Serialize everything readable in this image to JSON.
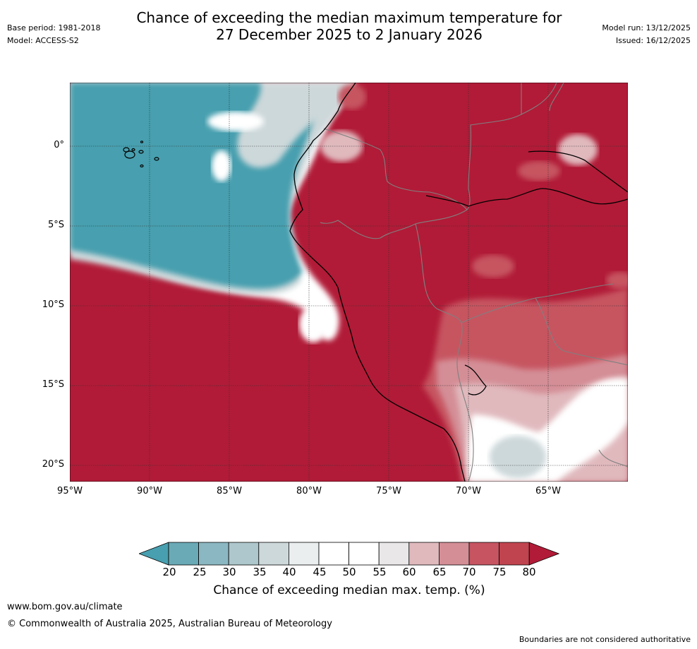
{
  "header": {
    "title_line1": "Chance of exceeding the median maximum temperature for",
    "title_line2": "27 December 2025 to 2 January 2026",
    "base_period": "Base period: 1981-2018",
    "model": "Model: ACCESS-S2",
    "model_run": "Model run: 13/12/2025",
    "issued": "Issued: 16/12/2025"
  },
  "map": {
    "lat_labels": [
      "0°",
      "5°S",
      "10°S",
      "15°S",
      "20°S"
    ],
    "lon_labels": [
      "95°W",
      "90°W",
      "85°W",
      "80°W",
      "75°W",
      "70°W",
      "65°W"
    ],
    "lat_values": [
      0,
      -5,
      -10,
      -15,
      -20
    ],
    "lon_values": [
      -95,
      -90,
      -85,
      -80,
      -75,
      -70,
      -65
    ],
    "extent": {
      "lon_min": -95,
      "lon_max": -60,
      "lat_min": -21,
      "lat_max": 4
    },
    "colors": {
      "ocean_low": "#479faf",
      "land_high": "#b11b37",
      "mid_light": "#ffffff",
      "pink_light": "#e0b9bd",
      "pink_mid": "#d48e96",
      "red_mid": "#c65461",
      "coast": "#000000",
      "border": "#808080"
    }
  },
  "colorbar": {
    "ticks": [
      "20",
      "25",
      "30",
      "35",
      "40",
      "45",
      "50",
      "55",
      "60",
      "65",
      "70",
      "75",
      "80"
    ],
    "colors": [
      "#479faf",
      "#6aaab6",
      "#8ab7c1",
      "#adc7cc",
      "#cdd8da",
      "#eaeeef",
      "#ffffff",
      "#ffffff",
      "#e9e7e8",
      "#e0b9bd",
      "#d48e96",
      "#c65461",
      "#c0444f",
      "#b11b37"
    ],
    "label": "Chance of exceeding median max. temp. (%)"
  },
  "footer": {
    "website": "www.bom.gov.au/climate",
    "copyright": "© Commonwealth of Australia 2025, Australian Bureau of Meteorology",
    "disclaimer": "Boundaries are not considered authoritative"
  }
}
